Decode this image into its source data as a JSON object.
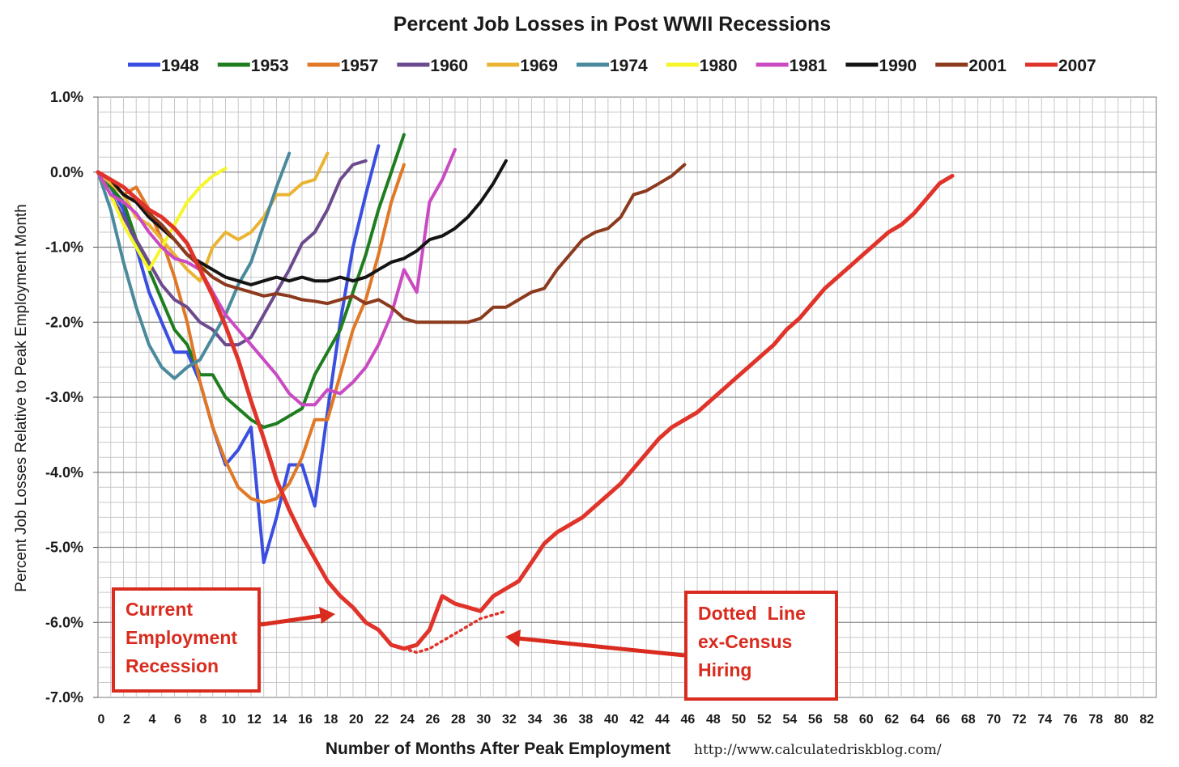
{
  "chart_data": {
    "type": "line",
    "title": "Percent Job Losses in Post WWII Recessions",
    "xlabel": "Number of Months After Peak Employment",
    "ylabel": "Percent Job Losses Relative to Peak Employment Month",
    "source": "http://www.calculatedriskblog.com/",
    "xlim": [
      0,
      83
    ],
    "ylim": [
      -7.0,
      1.0
    ],
    "y_ticks": [
      {
        "value": 1.0,
        "label": "1.0%"
      },
      {
        "value": 0.0,
        "label": "0.0%"
      },
      {
        "value": -1.0,
        "label": "-1.0%"
      },
      {
        "value": -2.0,
        "label": "-2.0%"
      },
      {
        "value": -3.0,
        "label": "-3.0%"
      },
      {
        "value": -4.0,
        "label": "-4.0%"
      },
      {
        "value": -5.0,
        "label": "-5.0%"
      },
      {
        "value": -6.0,
        "label": "-6.0%"
      },
      {
        "value": -7.0,
        "label": "-7.0%"
      }
    ],
    "x_ticks": [
      0,
      2,
      4,
      6,
      8,
      10,
      12,
      14,
      16,
      18,
      20,
      22,
      24,
      26,
      28,
      30,
      32,
      34,
      36,
      38,
      40,
      42,
      44,
      46,
      48,
      50,
      52,
      54,
      56,
      58,
      60,
      62,
      64,
      66,
      68,
      70,
      72,
      74,
      76,
      78,
      80,
      82
    ],
    "grid": true,
    "legend_position": "top",
    "series": [
      {
        "name": "1948",
        "color": "#3a4ee0",
        "values": [
          0,
          -0.2,
          -0.5,
          -1.0,
          -1.6,
          -2.0,
          -2.4,
          -2.4,
          -2.8,
          -3.4,
          -3.9,
          -3.7,
          -3.4,
          -5.2,
          -4.6,
          -3.9,
          -3.9,
          -4.45,
          -3.2,
          -2.0,
          -1.0,
          -0.3,
          0.35
        ]
      },
      {
        "name": "1953",
        "color": "#1e7d1e",
        "values": [
          0,
          -0.2,
          -0.4,
          -0.9,
          -1.3,
          -1.7,
          -2.1,
          -2.3,
          -2.7,
          -2.7,
          -3.0,
          -3.15,
          -3.3,
          -3.4,
          -3.35,
          -3.25,
          -3.15,
          -2.7,
          -2.4,
          -2.1,
          -1.6,
          -1.1,
          -0.5,
          0.0,
          0.5
        ]
      },
      {
        "name": "1957",
        "color": "#e07826",
        "values": [
          0,
          -0.15,
          -0.3,
          -0.2,
          -0.5,
          -0.9,
          -1.4,
          -2.0,
          -2.8,
          -3.4,
          -3.85,
          -4.2,
          -4.35,
          -4.4,
          -4.35,
          -4.15,
          -3.8,
          -3.3,
          -3.3,
          -2.7,
          -2.1,
          -1.7,
          -1.1,
          -0.4,
          0.1
        ]
      },
      {
        "name": "1960",
        "color": "#6b4a8e",
        "values": [
          0,
          -0.3,
          -0.6,
          -0.9,
          -1.2,
          -1.5,
          -1.7,
          -1.8,
          -2.0,
          -2.1,
          -2.3,
          -2.3,
          -2.2,
          -1.9,
          -1.6,
          -1.3,
          -0.95,
          -0.8,
          -0.5,
          -0.1,
          0.1,
          0.15
        ]
      },
      {
        "name": "1969",
        "color": "#eab432",
        "values": [
          0,
          -0.15,
          -0.3,
          -0.6,
          -0.7,
          -0.9,
          -1.1,
          -1.3,
          -1.45,
          -1.0,
          -0.8,
          -0.9,
          -0.8,
          -0.6,
          -0.3,
          -0.3,
          -0.15,
          -0.1,
          0.25
        ]
      },
      {
        "name": "1974",
        "color": "#4a8a9c",
        "values": [
          0,
          -0.5,
          -1.2,
          -1.8,
          -2.3,
          -2.6,
          -2.75,
          -2.6,
          -2.5,
          -2.2,
          -1.9,
          -1.5,
          -1.2,
          -0.7,
          -0.2,
          0.25
        ]
      },
      {
        "name": "1980",
        "color": "#f6f62a",
        "values": [
          0,
          -0.3,
          -0.7,
          -1.0,
          -1.3,
          -1.0,
          -0.7,
          -0.4,
          -0.2,
          -0.05,
          0.05
        ]
      },
      {
        "name": "1981",
        "color": "#c94ac2",
        "values": [
          0,
          -0.3,
          -0.4,
          -0.55,
          -0.8,
          -1.0,
          -1.15,
          -1.2,
          -1.3,
          -1.6,
          -1.9,
          -2.1,
          -2.3,
          -2.5,
          -2.7,
          -2.95,
          -3.1,
          -3.1,
          -2.9,
          -2.95,
          -2.8,
          -2.6,
          -2.3,
          -1.9,
          -1.3,
          -1.6,
          -0.4,
          -0.1,
          0.3
        ]
      },
      {
        "name": "1990",
        "color": "#141414",
        "values": [
          0,
          -0.1,
          -0.3,
          -0.4,
          -0.6,
          -0.75,
          -0.9,
          -1.1,
          -1.2,
          -1.3,
          -1.4,
          -1.45,
          -1.5,
          -1.45,
          -1.4,
          -1.45,
          -1.4,
          -1.45,
          -1.45,
          -1.4,
          -1.45,
          -1.4,
          -1.3,
          -1.2,
          -1.15,
          -1.05,
          -0.9,
          -0.85,
          -0.75,
          -0.6,
          -0.4,
          -0.15,
          0.15
        ]
      },
      {
        "name": "2001",
        "color": "#8b3a1e",
        "values": [
          0,
          -0.1,
          -0.2,
          -0.35,
          -0.55,
          -0.7,
          -0.9,
          -1.1,
          -1.25,
          -1.4,
          -1.5,
          -1.55,
          -1.6,
          -1.65,
          -1.62,
          -1.65,
          -1.7,
          -1.72,
          -1.75,
          -1.7,
          -1.65,
          -1.75,
          -1.7,
          -1.8,
          -1.95,
          -2.0,
          -2.0,
          -2.0,
          -2.0,
          -2.0,
          -1.95,
          -1.8,
          -1.8,
          -1.7,
          -1.6,
          -1.55,
          -1.3,
          -1.1,
          -0.9,
          -0.8,
          -0.75,
          -0.6,
          -0.3,
          -0.25,
          -0.15,
          -0.05,
          0.1
        ]
      },
      {
        "name": "2007",
        "color": "#e0332a",
        "values": [
          0,
          -0.1,
          -0.2,
          -0.35,
          -0.5,
          -0.6,
          -0.75,
          -0.95,
          -1.3,
          -1.65,
          -2.05,
          -2.5,
          -3.05,
          -3.55,
          -4.1,
          -4.5,
          -4.85,
          -5.15,
          -5.45,
          -5.65,
          -5.8,
          -6.0,
          -6.1,
          -6.3,
          -6.35,
          -6.3,
          -6.1,
          -5.65,
          -5.75,
          -5.8,
          -5.85,
          -5.65,
          -5.55,
          -5.45,
          -5.2,
          -4.95,
          -4.8,
          -4.7,
          -4.6,
          -4.45,
          -4.3,
          -4.15,
          -3.95,
          -3.75,
          -3.55,
          -3.4,
          -3.3,
          -3.2,
          -3.05,
          -2.9,
          -2.75,
          -2.6,
          -2.45,
          -2.3,
          -2.1,
          -1.95,
          -1.75,
          -1.55,
          -1.4,
          -1.25,
          -1.1,
          -0.95,
          -0.8,
          -0.7,
          -0.55,
          -0.35,
          -0.15,
          -0.05
        ]
      }
    ],
    "dotted_series": {
      "name": "2007 ex-Census",
      "x": [
        24,
        25,
        26,
        27,
        28,
        29,
        30,
        31,
        32
      ],
      "values": [
        -6.35,
        -6.4,
        -6.35,
        -6.25,
        -6.15,
        -6.05,
        -5.95,
        -5.9,
        -5.85
      ]
    }
  },
  "annotations": {
    "current": {
      "lines": [
        "Current",
        "Employment",
        "Recession"
      ]
    },
    "dotted": {
      "lines": [
        "Dotted  Line",
        "ex-Census",
        "Hiring"
      ]
    }
  }
}
